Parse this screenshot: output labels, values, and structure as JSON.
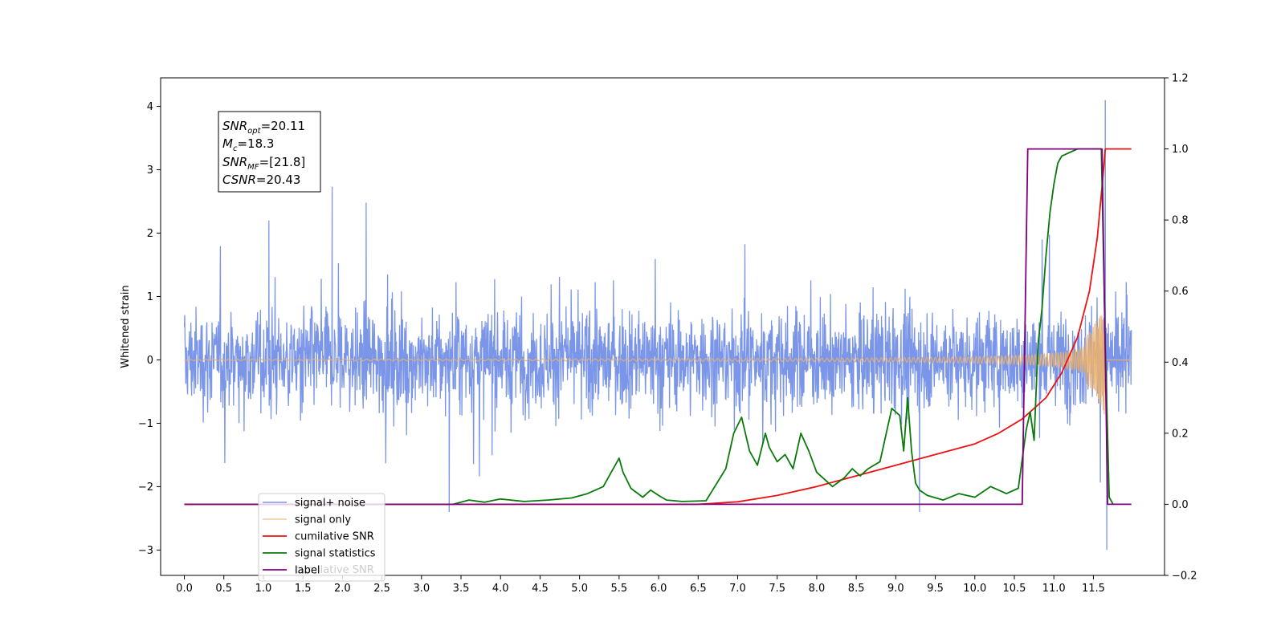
{
  "chart_data": {
    "type": "line",
    "ylabel": "Whitened strain",
    "y2label": "",
    "x_ticks": [
      0.0,
      0.5,
      1.0,
      1.5,
      2.0,
      2.5,
      3.0,
      3.5,
      4.0,
      4.5,
      5.0,
      5.5,
      6.0,
      6.5,
      7.0,
      7.5,
      8.0,
      8.5,
      9.0,
      9.5,
      10.0,
      10.5,
      11.0,
      11.5
    ],
    "xlim": [
      -0.3,
      12.4
    ],
    "ylim": [
      -3.4,
      4.45
    ],
    "y_ticks": [
      -3,
      -2,
      -1,
      0,
      1,
      2,
      3,
      4
    ],
    "y2lim": [
      -0.2,
      1.2
    ],
    "y2_ticks": [
      -0.2,
      0.0,
      0.2,
      0.4,
      0.6,
      0.8,
      1.0,
      1.2
    ],
    "grid": false,
    "legend_position": "lower-left",
    "annotation": {
      "lines": [
        {
          "main": "SNR",
          "sub": "opt",
          "rest": "=20.11"
        },
        {
          "main": "M",
          "sub": "c",
          "rest": "=18.3"
        },
        {
          "main": "SNR",
          "sub": "MF",
          "rest": "=[21.8]"
        },
        {
          "main": "CSNR",
          "sub": "",
          "rest": "=20.43"
        }
      ]
    },
    "legend": [
      "signal+ noise",
      "signal only",
      "cumilative SNR",
      "signal statistics",
      "label"
    ],
    "legend_ghost_text": "cumilative SNR",
    "series": [
      {
        "name": "signal+ noise",
        "axis": "left",
        "color": "#7b96e8",
        "kind": "noise",
        "x_start": 0.0,
        "x_end": 11.98,
        "band": 1.0,
        "outliers": [
          [
            1.07,
            2.2
          ],
          [
            1.87,
            2.73
          ],
          [
            2.3,
            2.48
          ],
          [
            3.35,
            -2.4
          ],
          [
            9.3,
            -2.4
          ],
          [
            11.65,
            4.1
          ],
          [
            11.67,
            -3.0
          ]
        ]
      },
      {
        "name": "signal only",
        "axis": "left",
        "color": "#e8b070",
        "kind": "chirp",
        "x_start": 0.0,
        "x_end": 11.98,
        "merger": 11.65
      },
      {
        "name": "cumilative SNR",
        "axis": "right",
        "color": "#ee1111",
        "x": [
          0.0,
          6.5,
          7.0,
          7.5,
          8.0,
          8.5,
          9.0,
          9.5,
          10.0,
          10.3,
          10.6,
          10.9,
          11.1,
          11.3,
          11.45,
          11.55,
          11.62,
          11.65,
          11.98
        ],
        "y": [
          0.0,
          0.0,
          0.007,
          0.025,
          0.05,
          0.08,
          0.11,
          0.14,
          0.17,
          0.2,
          0.24,
          0.3,
          0.37,
          0.47,
          0.6,
          0.75,
          0.92,
          1.0,
          1.0
        ]
      },
      {
        "name": "signal statistics",
        "axis": "right",
        "color": "#0a7a0a",
        "x": [
          0.0,
          3.4,
          3.6,
          3.8,
          4.0,
          4.3,
          4.6,
          4.9,
          5.1,
          5.3,
          5.4,
          5.5,
          5.55,
          5.65,
          5.8,
          5.9,
          6.0,
          6.1,
          6.3,
          6.6,
          6.85,
          6.95,
          7.05,
          7.15,
          7.25,
          7.35,
          7.4,
          7.5,
          7.6,
          7.7,
          7.8,
          7.9,
          8.0,
          8.1,
          8.2,
          8.35,
          8.45,
          8.55,
          8.65,
          8.8,
          8.95,
          9.05,
          9.1,
          9.15,
          9.2,
          9.25,
          9.3,
          9.4,
          9.6,
          9.8,
          10.0,
          10.2,
          10.4,
          10.55,
          10.65,
          10.7,
          10.75,
          10.8,
          10.85,
          10.9,
          10.95,
          11.0,
          11.05,
          11.1,
          11.2,
          11.3,
          11.4,
          11.6,
          11.65,
          11.7,
          11.75
        ],
        "y": [
          0.0,
          0.0,
          0.012,
          0.006,
          0.015,
          0.008,
          0.012,
          0.018,
          0.03,
          0.05,
          0.09,
          0.13,
          0.09,
          0.045,
          0.02,
          0.04,
          0.025,
          0.012,
          0.008,
          0.01,
          0.1,
          0.2,
          0.245,
          0.15,
          0.11,
          0.2,
          0.16,
          0.12,
          0.14,
          0.1,
          0.2,
          0.15,
          0.09,
          0.07,
          0.05,
          0.075,
          0.1,
          0.08,
          0.1,
          0.12,
          0.27,
          0.25,
          0.15,
          0.3,
          0.15,
          0.06,
          0.04,
          0.025,
          0.012,
          0.03,
          0.02,
          0.05,
          0.03,
          0.045,
          0.21,
          0.26,
          0.18,
          0.45,
          0.55,
          0.7,
          0.82,
          0.9,
          0.96,
          0.98,
          0.99,
          1.0,
          1.0,
          1.0,
          0.45,
          0.02,
          0.0
        ]
      },
      {
        "name": "label",
        "axis": "right",
        "color": "#800080",
        "x": [
          0.0,
          10.6,
          10.67,
          11.61,
          11.68,
          11.98
        ],
        "y": [
          0.0,
          0.0,
          1.0,
          1.0,
          0.0,
          0.0
        ]
      }
    ]
  }
}
